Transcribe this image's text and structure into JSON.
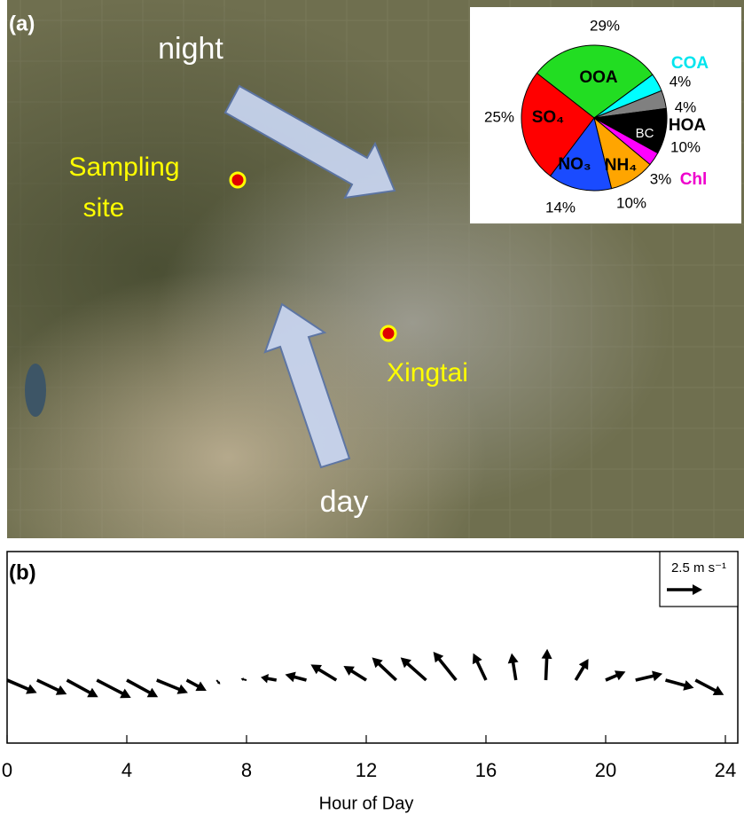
{
  "map": {
    "panel_label": "(a)",
    "night": "night",
    "day": "day",
    "site": [
      "Sampling",
      "site"
    ],
    "city": "Xingtai"
  },
  "chart_data": [
    {
      "type": "pie",
      "categories": [
        "OOA",
        "COA",
        "HOA",
        "BC",
        "Chl",
        "NH₄",
        "NO₃",
        "SO₄"
      ],
      "values": [
        29,
        4,
        4,
        10,
        3,
        10,
        14,
        25
      ],
      "value_labels": [
        "29%",
        "4%",
        "4%",
        "10%",
        "3%",
        "10%",
        "14%",
        "25%"
      ],
      "colors": [
        "#22dd22",
        "#00ffff",
        "#808080",
        "#000000",
        "#ff00ff",
        "#ffa500",
        "#1a4bff",
        "#ff0000"
      ]
    },
    {
      "type": "quiver",
      "panel_label": "(b)",
      "xlabel": "Hour of Day",
      "x": [
        0,
        1,
        2,
        3,
        4,
        5,
        6,
        7,
        8,
        9,
        10,
        11,
        12,
        13,
        14,
        15,
        16,
        17,
        18,
        19,
        20,
        21,
        22,
        23
      ],
      "u": [
        2.1,
        2.1,
        2.2,
        2.4,
        2.2,
        2.2,
        1.4,
        0.25,
        -0.4,
        -1.1,
        -1.5,
        -1.8,
        -1.6,
        -1.7,
        -1.8,
        -1.6,
        -0.9,
        -0.3,
        0.1,
        0.9,
        1.4,
        1.9,
        2.0,
        2.0
      ],
      "v": [
        -0.9,
        -1.0,
        -1.2,
        -1.25,
        -1.2,
        -0.9,
        -0.75,
        -0.3,
        0.1,
        0.2,
        0.4,
        1.1,
        1.0,
        1.6,
        1.6,
        2.0,
        1.9,
        1.9,
        2.2,
        1.5,
        0.6,
        0.45,
        -0.55,
        -1.05
      ],
      "xlim": [
        0,
        24
      ],
      "xticks": [
        0,
        4,
        8,
        12,
        16,
        20,
        24
      ],
      "key": {
        "value": 2.5,
        "label": "2.5 m s⁻¹"
      }
    }
  ]
}
